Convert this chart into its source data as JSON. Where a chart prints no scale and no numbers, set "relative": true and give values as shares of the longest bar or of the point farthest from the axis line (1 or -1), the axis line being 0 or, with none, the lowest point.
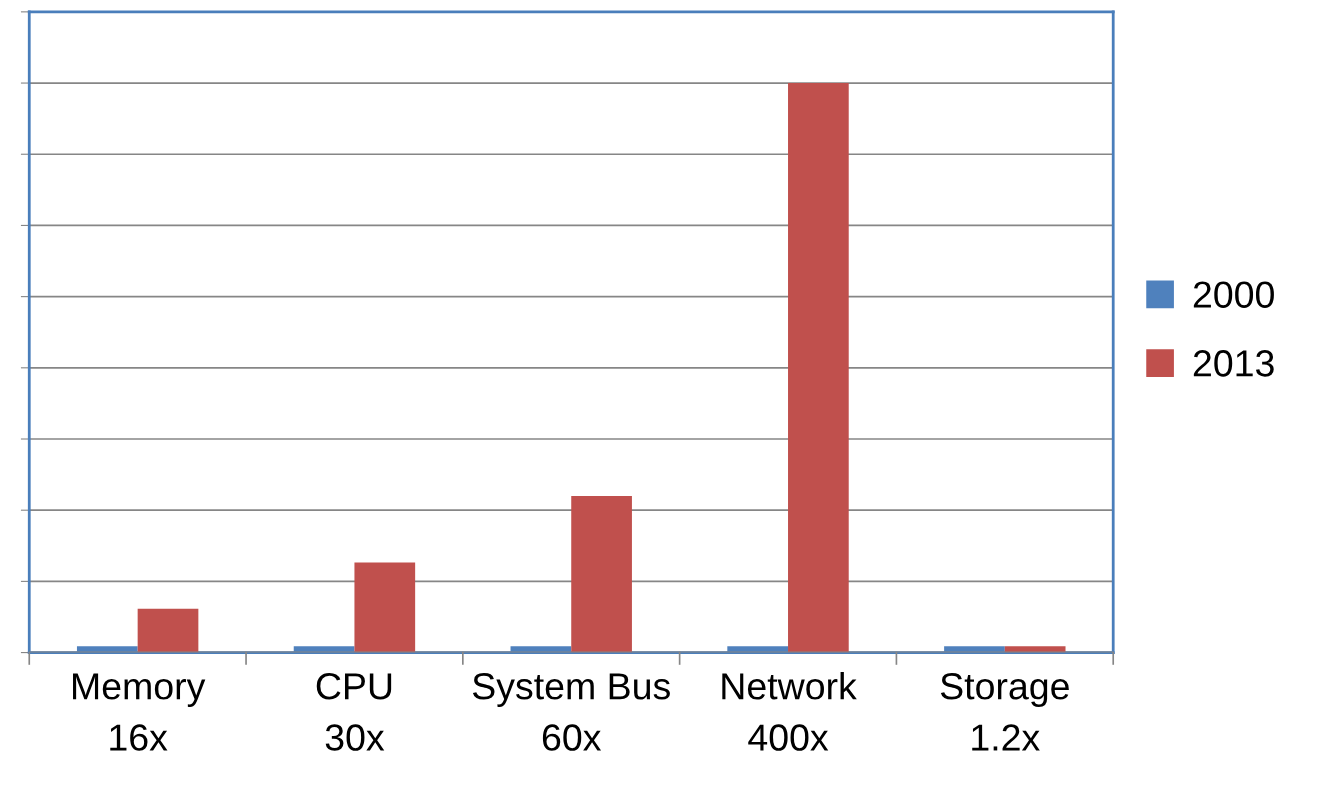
{
  "chart_data": {
    "type": "bar",
    "relative": true,
    "categories": [
      "Memory\n16x",
      "CPU\n30x",
      "System Bus\n60x",
      "Network\n400x",
      "Storage\n1.2x"
    ],
    "series": [
      {
        "name": "2000",
        "color": "#4f81bd",
        "values": [
          0.011,
          0.011,
          0.011,
          0.011,
          0.011
        ]
      },
      {
        "name": "2013",
        "color": "#c0504d",
        "values": [
          0.077,
          0.158,
          0.275,
          1,
          0.011
        ]
      }
    ],
    "grid": "y",
    "legend": "right"
  }
}
